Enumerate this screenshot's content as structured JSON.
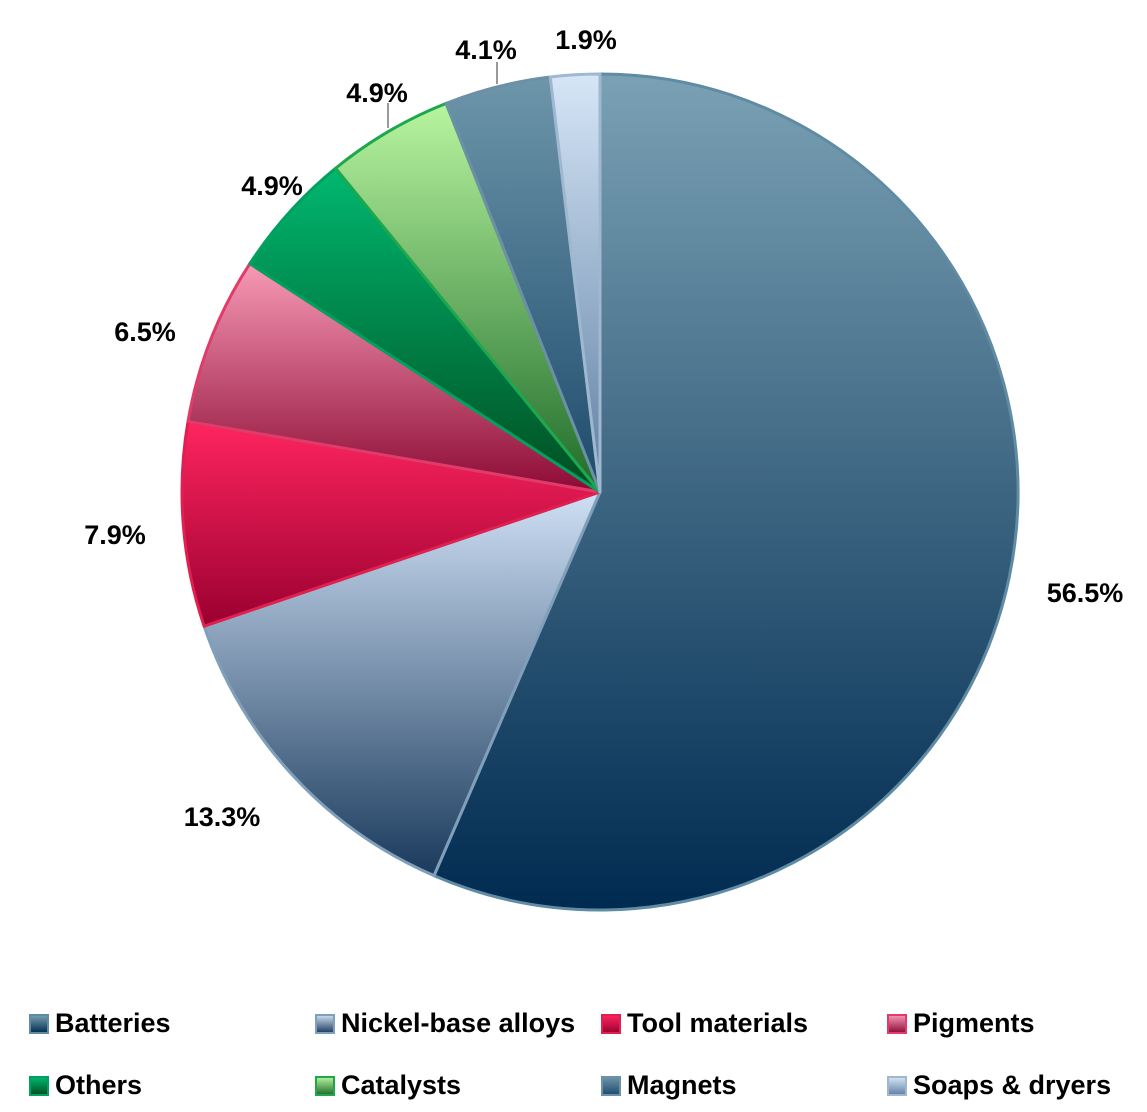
{
  "chart_data": {
    "type": "pie",
    "title": "",
    "start_angle_deg": 0,
    "direction": "clockwise",
    "legend_position": "bottom",
    "categories": [
      "Batteries",
      "Nickel-base alloys",
      "Tool materials",
      "Pigments",
      "Others",
      "Catalysts",
      "Magnets",
      "Soaps & dryers"
    ],
    "values": [
      56.5,
      13.3,
      7.9,
      6.5,
      4.9,
      4.9,
      4.1,
      1.9
    ],
    "labels": [
      "56.5%",
      "13.3%",
      "7.9%",
      "6.5%",
      "4.9%",
      "4.9%",
      "4.1%",
      "1.9%"
    ],
    "colors": {
      "Batteries": {
        "light": "#7aa1b4",
        "dark": "#002a50",
        "edge": "#5f8ca3"
      },
      "Nickel-base alloys": {
        "light": "#cfe0f5",
        "dark": "#1a3a5c",
        "edge": "#7f9fba"
      },
      "Tool materials": {
        "light": "#ff2560",
        "dark": "#9a0030",
        "edge": "#e0204f"
      },
      "Pigments": {
        "light": "#f79ab6",
        "dark": "#8c0a35",
        "edge": "#e03c6a"
      },
      "Others": {
        "light": "#00b870",
        "dark": "#004d20",
        "edge": "#00a060"
      },
      "Catalysts": {
        "light": "#b8f5a0",
        "dark": "#1f6b2a",
        "edge": "#1ea84e"
      },
      "Magnets": {
        "light": "#6d96aa",
        "dark": "#1e4a6c",
        "edge": "#6c90a5"
      },
      "Soaps & dryers": {
        "light": "#d6e6f7",
        "dark": "#5f7fa3",
        "edge": "#9fb8d0"
      }
    }
  }
}
